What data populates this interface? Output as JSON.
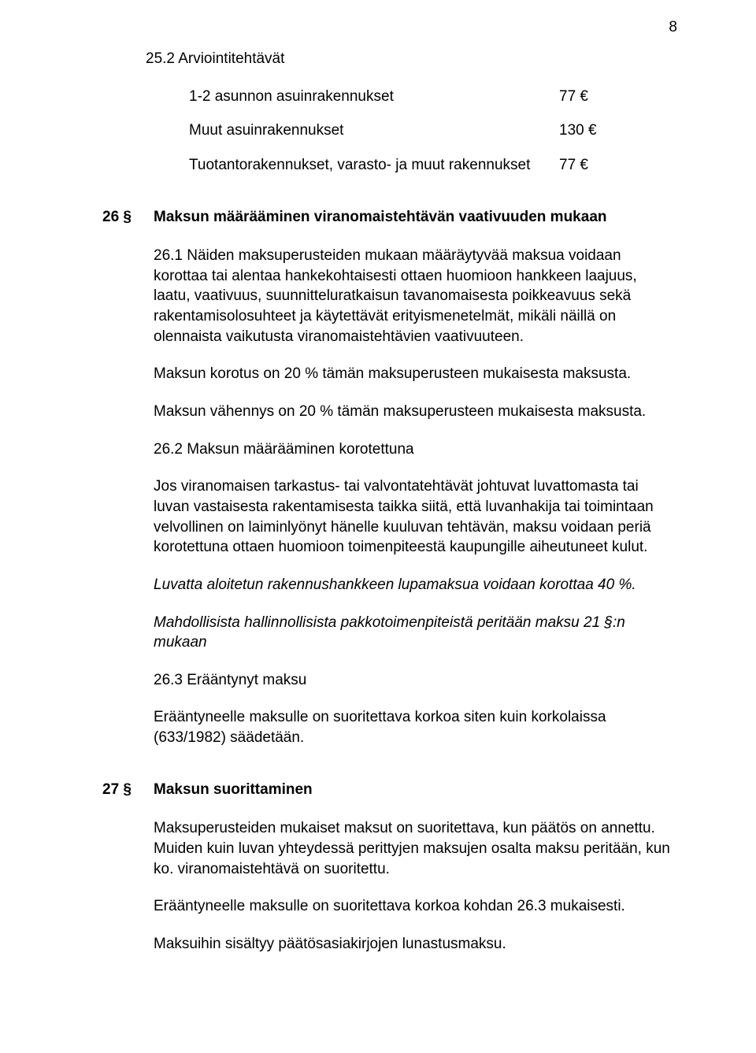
{
  "page_number": "8",
  "section_25_2": {
    "heading": "25.2 Arviointitehtävät",
    "rows": [
      {
        "label": "1-2 asunnon asuinrakennukset",
        "value": "77 €"
      },
      {
        "label": "Muut asuinrakennukset",
        "value": "130 €"
      },
      {
        "label": "Tuotantorakennukset, varasto- ja muut rakennukset",
        "value": "77 €"
      }
    ]
  },
  "section_26": {
    "number": "26 §",
    "title": "Maksun määrääminen viranomaistehtävän vaativuuden mukaan",
    "p1": "26.1 Näiden maksuperusteiden mukaan määräytyvää maksua voidaan korottaa tai alentaa hankekohtaisesti ottaen huomioon hankkeen laajuus, laatu, vaativuus, suunnitteluratkaisun tavanomaisesta poikkeavuus sekä rakentamisolosuhteet ja käytettävät erityismenetelmät, mikäli näillä on olennaista vaikutusta viranomaistehtävien vaativuuteen.",
    "p2": "Maksun korotus on 20 % tämän maksuperusteen mukaisesta maksusta.",
    "p3": "Maksun vähennys on 20 % tämän maksuperusteen mukaisesta maksusta.",
    "sub2": "26.2 Maksun määrääminen korotettuna",
    "p4": "Jos viranomaisen tarkastus- tai valvontatehtävät johtuvat luvattomasta tai luvan vastaisesta rakentamisesta taikka siitä, että luvanhakija tai toimintaan velvollinen on laiminlyönyt hänelle kuuluvan tehtävän, maksu voidaan periä korotettuna ottaen huomioon toimenpiteestä kaupungille aiheutuneet kulut.",
    "p5": "Luvatta aloitetun rakennushankkeen lupamaksua voidaan korottaa 40 %.",
    "p6": "Mahdollisista hallinnollisista pakkotoimenpiteistä peritään maksu 21 §:n mukaan",
    "sub3": "26.3 Erääntynyt maksu",
    "p7": "Erääntyneelle maksulle on suoritettava korkoa siten kuin korkolaissa (633/1982) säädetään."
  },
  "section_27": {
    "number": "27 §",
    "title": "Maksun suorittaminen",
    "p1": "Maksuperusteiden mukaiset maksut on suoritettava, kun päätös on annettu. Muiden kuin luvan yhteydessä perittyjen maksujen osalta maksu peritään, kun ko. viranomaistehtävä on suoritettu.",
    "p2": "Erääntyneelle maksulle on suoritettava korkoa kohdan 26.3 mukaisesti.",
    "p3": "Maksuihin sisältyy päätösasiakirjojen lunastusmaksu."
  }
}
